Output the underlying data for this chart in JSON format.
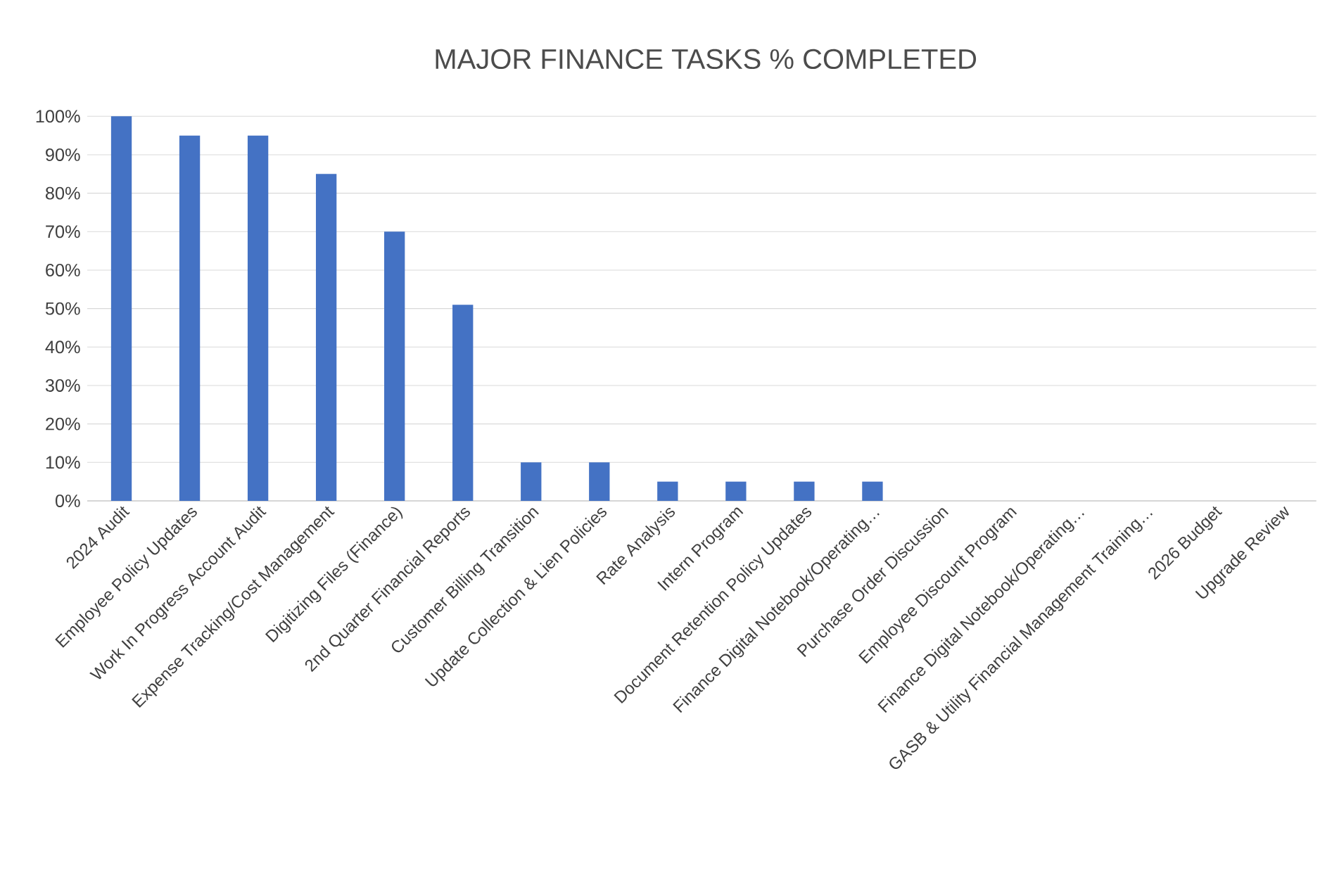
{
  "chart_data": {
    "type": "bar",
    "title": "MAJOR FINANCE TASKS % COMPLETED",
    "categories": [
      "2024 Audit",
      "Employee Policy Updates",
      "Work In Progress Account Audit",
      "Expense Tracking/Cost Management",
      "Digitizing Files (Finance)",
      "2nd Quarter Financial Reports",
      "Customer Billing Transition",
      "Update Collection & Lien Policies",
      "Rate Analysis",
      "Intern Program",
      "Document Retention Policy Updates",
      "Finance Digital Notebook/Operating…",
      "Purchase Order Discussion",
      "Employee Discount Program",
      "Finance Digital Notebook/Operating…",
      "GASB & Utility Financial Management Training…",
      "2026 Budget",
      "Upgrade Review"
    ],
    "values": [
      100,
      95,
      95,
      85,
      70,
      51,
      10,
      10,
      5,
      5,
      5,
      5,
      0,
      0,
      0,
      0,
      0,
      0
    ],
    "color": "#4472c4",
    "ylim": [
      0,
      100
    ],
    "yticks": [
      {
        "value": 0,
        "label": "0%"
      },
      {
        "value": 10,
        "label": "10%"
      },
      {
        "value": 20,
        "label": "20%"
      },
      {
        "value": 30,
        "label": "30%"
      },
      {
        "value": 40,
        "label": "40%"
      },
      {
        "value": 50,
        "label": "50%"
      },
      {
        "value": 60,
        "label": "60%"
      },
      {
        "value": 70,
        "label": "70%"
      },
      {
        "value": 80,
        "label": "80%"
      },
      {
        "value": 90,
        "label": "90%"
      },
      {
        "value": 100,
        "label": "100%"
      }
    ],
    "grid": "y"
  }
}
